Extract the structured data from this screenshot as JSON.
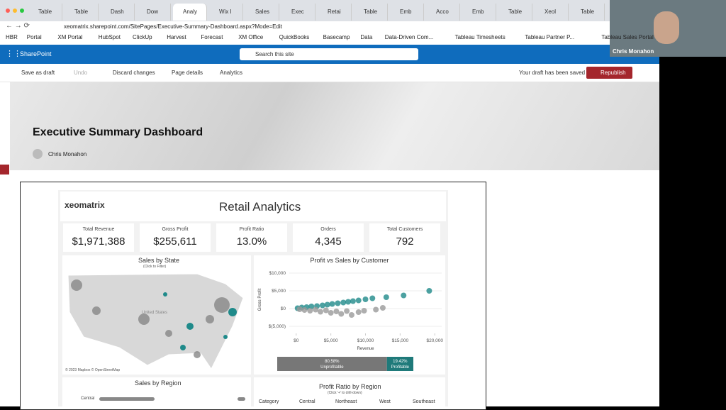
{
  "browser": {
    "tabs": [
      "Table",
      "Table",
      "Dash",
      "Dow",
      "Analy",
      "Wix I",
      "Sales",
      "Exec",
      "Retai",
      "Table",
      "Emb",
      "Acco",
      "Emb",
      "Table",
      "Xeol",
      "Table"
    ],
    "url": "xeomatrix.sharepoint.com/SitePages/Executive-Summary-Dashboard.aspx?Mode=Edit",
    "bookmarks": [
      "HBR",
      "Portal",
      "XM Portal",
      "HubSpot",
      "ClickUp",
      "Harvest",
      "Forecast",
      "XM Office",
      "QuickBooks",
      "Basecamp",
      "Data",
      "Data-Driven Com...",
      "Tableau Timesheets",
      "Tableau Partner P...",
      "Tableau Sales Portal"
    ]
  },
  "sharepoint": {
    "app": "SharePoint",
    "search": "Search this site",
    "commands": [
      "Save as draft",
      "Undo",
      "Discard changes",
      "Page details",
      "Analytics"
    ],
    "status": "Your draft has been saved",
    "republish": "Republish"
  },
  "page": {
    "title": "Executive Summary Dashboard",
    "author": "Chris Monahon"
  },
  "dashboard": {
    "logo": "xeomatrix",
    "title": "Retail Analytics",
    "kpis": [
      {
        "label": "Total Revenue",
        "value": "$1,971,388"
      },
      {
        "label": "Gross Profit",
        "value": "$255,611"
      },
      {
        "label": "Profit Ratio",
        "value": "13.0%"
      },
      {
        "label": "Orders",
        "value": "4,345"
      },
      {
        "label": "Total Customers",
        "value": "792"
      }
    ],
    "map": {
      "title": "Sales by State",
      "subtitle": "(Click to Filter)",
      "country": "United States",
      "attribution": "© 2023 Mapbox © OpenStreetMap"
    },
    "scatter": {
      "type": "scatter",
      "title": "Profit vs Sales by Customer",
      "x_label": "Revenue",
      "y_label": "Gross Profit",
      "xlim": [
        -1000,
        21000
      ],
      "ylim": [
        -7000,
        12000
      ],
      "xticks": [
        {
          "value": 0,
          "label": "$0"
        },
        {
          "value": 5000,
          "label": "$5,000"
        },
        {
          "value": 10000,
          "label": "$10,000"
        },
        {
          "value": 15000,
          "label": "$15,000"
        },
        {
          "value": 20000,
          "label": "$20,000"
        }
      ],
      "yticks": [
        {
          "value": 10000,
          "label": "$10,000"
        },
        {
          "value": 5000,
          "label": "$5,000"
        },
        {
          "value": 0,
          "label": "$0"
        },
        {
          "value": -5000,
          "label": "$(5,000)"
        }
      ],
      "series": [
        {
          "color": "#1f8a8a",
          "x": [
            200,
            800,
            1500,
            2200,
            3000,
            3800,
            4500,
            5200,
            6000,
            6800,
            7500,
            8200,
            9000,
            10000,
            11000,
            13000,
            15500,
            19200
          ],
          "y": [
            100,
            300,
            400,
            600,
            700,
            900,
            1100,
            1300,
            1500,
            1700,
            1900,
            2100,
            2300,
            2600,
            2900,
            3200,
            3700,
            5000
          ]
        },
        {
          "color": "#9a9a9a",
          "x": [
            500,
            1200,
            2000,
            2800,
            3500,
            4300,
            5000,
            5800,
            6500,
            7300,
            8000,
            9000,
            9800,
            11500,
            12500
          ],
          "y": [
            -200,
            -400,
            -600,
            -300,
            -900,
            -500,
            -1200,
            -800,
            -1500,
            -700,
            -1800,
            -1000,
            -600,
            -300,
            200
          ]
        }
      ],
      "split": [
        {
          "value": 80.58,
          "label": "80.58%",
          "name": "Unprofitable",
          "color": "#777777"
        },
        {
          "value": 19.42,
          "label": "19.42%",
          "name": "Profitable",
          "color": "#1f7a7a"
        }
      ]
    },
    "region": {
      "title": "Sales by Region",
      "categories": [
        "Central"
      ]
    },
    "ratio": {
      "title": "Profit Ratio by Region",
      "subtitle": "(Click '+' to drill-down)",
      "headers": [
        "Category",
        "Central",
        "Northeast",
        "West",
        "Southeast"
      ]
    }
  },
  "video": {
    "name": "Chris Monahon"
  }
}
